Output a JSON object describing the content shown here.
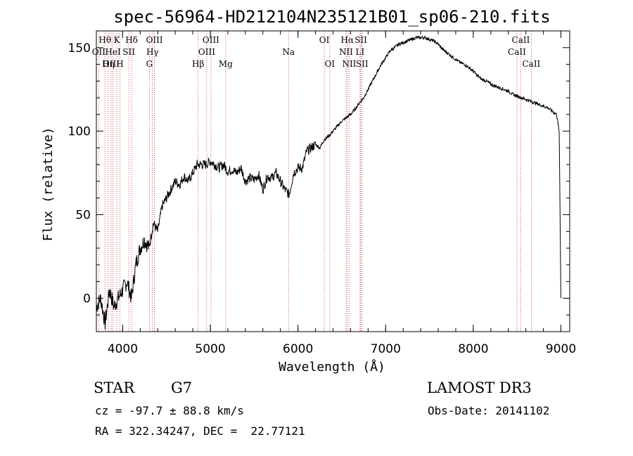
{
  "chart_data": {
    "type": "line",
    "title": "spec-56964-HD212104N235121B01_sp06-210.fits",
    "xlabel": "Wavelength (Å)",
    "ylabel": "Flux (relative)",
    "xlim": [
      3700,
      9100
    ],
    "ylim": [
      -20,
      160
    ],
    "xticks": [
      4000,
      5000,
      6000,
      7000,
      8000,
      9000
    ],
    "yticks": [
      0,
      50,
      100,
      150
    ],
    "grid": false,
    "series": [
      {
        "name": "flux",
        "x": [
          3700,
          3750,
          3800,
          3850,
          3900,
          3950,
          4000,
          4050,
          4100,
          4150,
          4200,
          4250,
          4300,
          4350,
          4400,
          4450,
          4500,
          4550,
          4600,
          4650,
          4700,
          4750,
          4800,
          4850,
          4900,
          4950,
          5000,
          5050,
          5100,
          5150,
          5200,
          5250,
          5300,
          5350,
          5400,
          5450,
          5500,
          5550,
          5600,
          5650,
          5700,
          5750,
          5800,
          5850,
          5900,
          5950,
          6000,
          6050,
          6100,
          6150,
          6200,
          6250,
          6300,
          6350,
          6400,
          6450,
          6500,
          6550,
          6600,
          6650,
          6700,
          6750,
          6800,
          6850,
          6900,
          6950,
          7000,
          7050,
          7100,
          7150,
          7200,
          7250,
          7300,
          7350,
          7400,
          7450,
          7500,
          7550,
          7600,
          7650,
          7700,
          7750,
          7800,
          7850,
          7900,
          7950,
          8000,
          8050,
          8100,
          8150,
          8200,
          8250,
          8300,
          8350,
          8400,
          8450,
          8500,
          8550,
          8600,
          8650,
          8700,
          8750,
          8800,
          8850,
          8900,
          8950,
          8980,
          9000
        ],
        "y": [
          -5,
          0,
          -15,
          5,
          -5,
          0,
          5,
          10,
          0,
          20,
          30,
          35,
          30,
          45,
          40,
          55,
          60,
          65,
          70,
          68,
          73,
          70,
          75,
          80,
          80,
          80,
          82,
          80,
          78,
          80,
          76,
          77,
          75,
          78,
          70,
          72,
          71,
          74,
          65,
          73,
          72,
          75,
          70,
          65,
          62,
          75,
          78,
          78,
          88,
          90,
          92,
          90,
          95,
          97,
          100,
          103,
          106,
          108,
          110,
          113,
          117,
          120,
          125,
          130,
          135,
          140,
          144,
          148,
          150,
          152,
          153,
          154,
          155,
          156,
          156,
          156,
          155,
          154,
          152,
          149,
          147,
          145,
          143,
          141,
          140,
          138,
          136,
          133,
          131,
          130,
          128,
          127,
          126,
          125,
          124,
          122,
          121,
          120,
          119,
          118,
          117,
          116,
          115,
          114,
          112,
          110,
          100,
          0
        ]
      }
    ],
    "spectral_lines": [
      {
        "name": "Hθ",
        "wavelength": 3798,
        "row": 1
      },
      {
        "name": "OII",
        "wavelength": 3727,
        "row": 2
      },
      {
        "name": "OIII",
        "wavelength": 3869,
        "row": 3
      },
      {
        "name": "K",
        "wavelength": 3934,
        "row": 1
      },
      {
        "name": "HeI",
        "wavelength": 3889,
        "row": 2
      },
      {
        "name": "Hη",
        "wavelength": 3835,
        "row": 3
      },
      {
        "name": "H",
        "wavelength": 3969,
        "row": 3
      },
      {
        "name": "Hδ",
        "wavelength": 4102,
        "row": 1
      },
      {
        "name": "SII",
        "wavelength": 4070,
        "row": 2
      },
      {
        "name": "OIII",
        "wavelength": 4363,
        "row": 1
      },
      {
        "name": "Hγ",
        "wavelength": 4340,
        "row": 2
      },
      {
        "name": "G",
        "wavelength": 4305,
        "row": 3
      },
      {
        "name": "Hβ",
        "wavelength": 4861,
        "row": 3
      },
      {
        "name": "OIII",
        "wavelength": 5007,
        "row": 1
      },
      {
        "name": "OIII",
        "wavelength": 4959,
        "row": 2
      },
      {
        "name": "Mg",
        "wavelength": 5175,
        "row": 3
      },
      {
        "name": "Na",
        "wavelength": 5893,
        "row": 2
      },
      {
        "name": "OI",
        "wavelength": 6300,
        "row": 1
      },
      {
        "name": "OI",
        "wavelength": 6363,
        "row": 3
      },
      {
        "name": "Hα",
        "wavelength": 6563,
        "row": 1
      },
      {
        "name": "NII",
        "wavelength": 6548,
        "row": 2
      },
      {
        "name": "NII",
        "wavelength": 6584,
        "row": 3
      },
      {
        "name": "SII",
        "wavelength": 6717,
        "row": 1
      },
      {
        "name": "LI",
        "wavelength": 6708,
        "row": 2
      },
      {
        "name": "SII",
        "wavelength": 6731,
        "row": 3
      },
      {
        "name": "CaII",
        "wavelength": 8498,
        "row": 2
      },
      {
        "name": "CaII",
        "wavelength": 8542,
        "row": 1
      },
      {
        "name": "CaII",
        "wavelength": 8662,
        "row": 3
      }
    ]
  },
  "info": {
    "class": "STAR",
    "subclass": "G7",
    "survey": "LAMOST DR3",
    "redshift": "cz = -97.7 ± 88.8 km/s",
    "obs_date": "Obs-Date: 20141102",
    "coords": "RA = 322.34247, DEC =  22.77121"
  }
}
